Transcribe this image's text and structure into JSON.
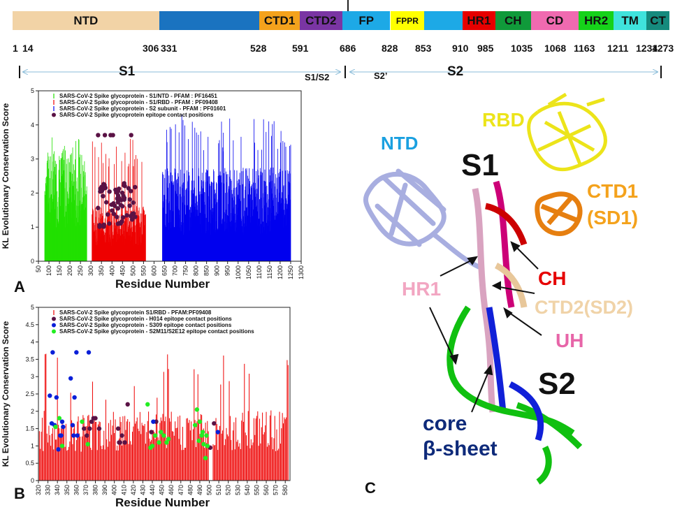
{
  "domain_bar": {
    "segments": [
      {
        "label": "NTD",
        "color": "#f2d3a6",
        "start": 0,
        "end": 0.223
      },
      {
        "label": "",
        "color": "#1a73c0",
        "start": 0.223,
        "end": 0.376
      },
      {
        "label": "CTD1",
        "color": "#f4a21c",
        "start": 0.376,
        "end": 0.437
      },
      {
        "label": "CTD2",
        "color": "#7a35a3",
        "start": 0.437,
        "end": 0.502
      },
      {
        "label": "FP",
        "color": "#1da9e6",
        "start": 0.502,
        "end": 0.575
      },
      {
        "label": "FPPR",
        "color": "#ffff00",
        "start": 0.575,
        "end": 0.627
      },
      {
        "label": "",
        "color": "#1da9e6",
        "start": 0.627,
        "end": 0.685
      },
      {
        "label": "HR1",
        "color": "#e60000",
        "start": 0.685,
        "end": 0.735
      },
      {
        "label": "CH",
        "color": "#109a3a",
        "start": 0.735,
        "end": 0.789
      },
      {
        "label": "CD",
        "color": "#f06ab0",
        "start": 0.789,
        "end": 0.862
      },
      {
        "label": "HR2",
        "color": "#16d21a",
        "start": 0.862,
        "end": 0.915
      },
      {
        "label": "TM",
        "color": "#3fe3dc",
        "start": 0.915,
        "end": 0.965
      },
      {
        "label": "CT",
        "color": "#158a7d",
        "start": 0.965,
        "end": 1.0
      }
    ],
    "positions": [
      "1",
      "14",
      "306",
      "331",
      "528",
      "591",
      "686",
      "828",
      "853",
      "910",
      "985",
      "1035",
      "1068",
      "1163",
      "1211",
      "1234",
      "1273"
    ]
  },
  "regions": {
    "s1": "S1",
    "s1s2": "S1/S2",
    "s2prime": "S2’",
    "s2": "S2"
  },
  "panel_a": {
    "letter": "A",
    "ylabel": "KL Evolutionary Conservation Score",
    "xlabel": "Residue Number",
    "legend": [
      "SARS-CoV-2 Spike glycoprotein - S1/NTD - PFAM : PF16451",
      "SARS-CoV-2 Spike glycoprotein - S1/RBD - PFAM : PF09408",
      "SARS-CoV-2 Spike glycoprotein - S2 subunit - PFAM : PF01601",
      "SARS-CoV-2 Spike glycoprotein epitope contact positions"
    ],
    "colors": {
      "ntd": "#22e000",
      "rbd": "#ee0000",
      "s2": "#0000ee",
      "epitope": "#5a1245"
    }
  },
  "panel_b": {
    "letter": "B",
    "ylabel": "KL Evolutionary Conservation Score",
    "xlabel": "Residue Number",
    "legend": [
      "SARS-CoV-2 Spike glycoprotein S1/RBD - PFAM:PF09408",
      "SARS-CoV-2 Spike glycoprotein - H014 epitope contact positions",
      "SARS-CoV-2 Spike glycoprotein - S309 epitope contact positions",
      "SARS-CoV-2 Spike glycoprotein - S2M11/S2E12 epitope contact positions"
    ],
    "colors": {
      "rbd": "#ee0000",
      "h014": "#5a1245",
      "s309": "#0a1fd8",
      "s2m11": "#22ee22"
    }
  },
  "panel_c": {
    "letter": "C",
    "labels": {
      "ntd": "NTD",
      "s1": "S1",
      "rbd": "RBD",
      "ctd1": "CTD1",
      "sd1": "(SD1)",
      "ch": "CH",
      "hr1": "HR1",
      "ctd2": "CTD2(SD2)",
      "uh": "UH",
      "s2": "S2",
      "core": "core",
      "bsheet": "β-sheet"
    },
    "colors": {
      "ntd": "#1aa0e0",
      "rbd": "#ece41a",
      "ctd1": "#f4a21c",
      "ch": "#e60000",
      "hr1": "#f2a6c2",
      "ctd2": "#f0d3a8",
      "uh": "#e765a8",
      "core": "#0e2a7a"
    }
  },
  "chart_data": [
    {
      "type": "bar",
      "title": "",
      "xlabel": "Residue Number",
      "ylabel": "KL Evolutionary Conservation Score",
      "xlim": [
        50,
        1300
      ],
      "ylim": [
        0,
        5
      ],
      "x_ticks": [
        50,
        100,
        150,
        200,
        250,
        300,
        350,
        400,
        450,
        500,
        550,
        600,
        650,
        700,
        750,
        800,
        850,
        900,
        950,
        1000,
        1050,
        1100,
        1150,
        1200,
        1250,
        1300
      ],
      "y_ticks": [
        0,
        1,
        2,
        3,
        4,
        5
      ],
      "legend_position": "top-left",
      "series": [
        {
          "name": "SARS-CoV-2 Spike glycoprotein - S1/NTD - PFAM : PF16451",
          "range": [
            80,
            280
          ],
          "typical": 2.6,
          "max": 3.7
        },
        {
          "name": "SARS-CoV-2 Spike glycoprotein - S1/RBD - PFAM : PF09408",
          "range": [
            305,
            560
          ],
          "typical": 1.3,
          "max": 3.7
        },
        {
          "name": "SARS-CoV-2 Spike glycoprotein - S2 subunit - PFAM : PF01601",
          "range": [
            640,
            1250
          ],
          "typical": 2.2,
          "max": 4.3
        }
      ],
      "epitope_points": {
        "name": "SARS-CoV-2 Spike glycoprotein epitope contact positions",
        "x_range": [
          330,
          520
        ],
        "y_range": [
          0.7,
          3.7
        ]
      }
    },
    {
      "type": "bar",
      "title": "",
      "xlabel": "Residue Number",
      "ylabel": "KL Evolutionary Conservation Score",
      "xlim": [
        320,
        585
      ],
      "ylim": [
        0,
        5
      ],
      "x_ticks": [
        320,
        330,
        340,
        350,
        360,
        370,
        380,
        390,
        400,
        410,
        420,
        430,
        440,
        450,
        460,
        470,
        480,
        490,
        500,
        510,
        520,
        530,
        540,
        550,
        560,
        570,
        580
      ],
      "y_ticks": [
        0,
        0.5,
        1,
        1.5,
        2,
        2.5,
        3,
        3.5,
        4,
        4.5,
        5
      ],
      "legend_position": "top-left",
      "series": [
        {
          "name": "SARS-CoV-2 Spike glycoprotein S1/RBD - PFAM:PF09408",
          "range": [
            320,
            583
          ],
          "typical": 1.5,
          "max": 3.7
        }
      ],
      "points": [
        {
          "name": "SARS-CoV-2 Spike glycoprotein - H014 epitope contact positions",
          "xy": [
            [
              368,
              1.5
            ],
            [
              371,
              1.3
            ],
            [
              374,
              1.5
            ],
            [
              376,
              1.7
            ],
            [
              378,
              1.8
            ],
            [
              380,
              1.8
            ],
            [
              384,
              1.5
            ],
            [
              404,
              1.5
            ],
            [
              405,
              1.1
            ],
            [
              406,
              1.1
            ],
            [
              408,
              1.3
            ],
            [
              411,
              1.1
            ],
            [
              414,
              2.2
            ],
            [
              439,
              1.4
            ],
            [
              444,
              1.7
            ],
            [
              501,
              0.95
            ],
            [
              505,
              1.65
            ]
          ]
        },
        {
          "name": "SARS-CoV-2 Spike glycoprotein - S309 epitope contact positions",
          "xy": [
            [
              332,
              2.45
            ],
            [
              334,
              1.65
            ],
            [
              335,
              3.7
            ],
            [
              337,
              1.6
            ],
            [
              339,
              2.4
            ],
            [
              341,
              0.9
            ],
            [
              343,
              1.3
            ],
            [
              344,
              1.3
            ],
            [
              345,
              1.7
            ],
            [
              346,
              1.55
            ],
            [
              354,
              2.95
            ],
            [
              356,
              1.6
            ],
            [
              357,
              1.3
            ],
            [
              358,
              2.4
            ],
            [
              360,
              3.7
            ],
            [
              361,
              1.3
            ],
            [
              373,
              3.7
            ],
            [
              441,
              1.7
            ],
            [
              509,
              1.4
            ]
          ]
        },
        {
          "name": "SARS-CoV-2 Spike glycoprotein - S2M11/S2E12 epitope contact positions",
          "xy": [
            [
              338,
              1.55
            ],
            [
              342,
              1.8
            ],
            [
              345,
              1.0
            ],
            [
              366,
              1.7
            ],
            [
              372,
              1.05
            ],
            [
              435,
              2.2
            ],
            [
              438,
              0.95
            ],
            [
              440,
              1.0
            ],
            [
              443,
              1.3
            ],
            [
              447,
              1.1
            ],
            [
              449,
              1.4
            ],
            [
              452,
              1.3
            ],
            [
              455,
              1.1
            ],
            [
              457,
              1.2
            ],
            [
              485,
              1.6
            ],
            [
              487,
              2.05
            ],
            [
              489,
              1.15
            ],
            [
              490,
              1.7
            ],
            [
              492,
              1.3
            ],
            [
              493,
              1.4
            ],
            [
              494,
              1.05
            ],
            [
              496,
              0.65
            ],
            [
              497,
              1.3
            ],
            [
              498,
              1.0
            ]
          ]
        }
      ]
    }
  ]
}
